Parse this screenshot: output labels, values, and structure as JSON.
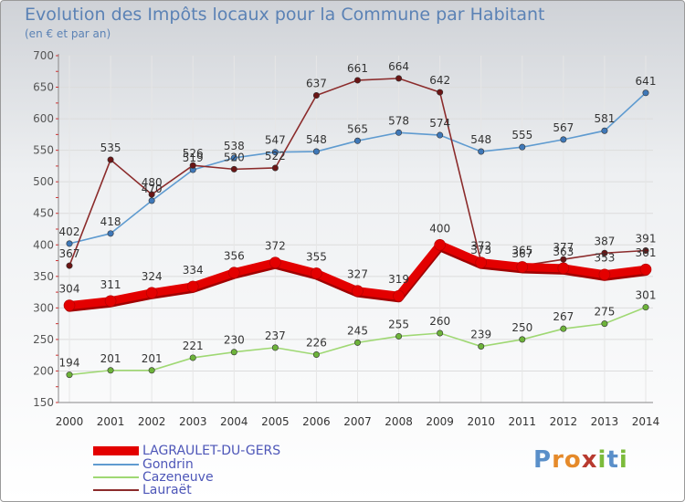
{
  "header": {
    "title": "Evolution des Impôts locaux pour la Commune par Habitant",
    "subtitle": "(en € et par an)"
  },
  "logo": {
    "text": "Proxiti",
    "letters": [
      "P",
      "r",
      "o",
      "x",
      "i",
      "t",
      "i"
    ],
    "colors": [
      "#5a8fc9",
      "#e58a2a",
      "#e58a2a",
      "#b83a2f",
      "#7cbb3b",
      "#5a8fc9",
      "#7cbb3b"
    ]
  },
  "chart_data": {
    "type": "line",
    "title": "Evolution des Impôts locaux pour la Commune par Habitant",
    "ylabel": "(en € et par an)",
    "xlabel": "",
    "categories": [
      "2000",
      "2001",
      "2002",
      "2003",
      "2004",
      "2005",
      "2006",
      "2007",
      "2008",
      "2009",
      "2010",
      "2011",
      "2012",
      "2013",
      "2014"
    ],
    "ylim": [
      150,
      700
    ],
    "yticks": [
      150,
      200,
      250,
      300,
      350,
      400,
      450,
      500,
      550,
      600,
      650,
      700
    ],
    "grid": true,
    "legend_position": "bottom-left",
    "series": [
      {
        "name": "LAGRAULET-DU-GERS",
        "color": "#e30000",
        "marker": "#d01010",
        "emphasis": true,
        "values": [
          304,
          311,
          324,
          334,
          356,
          372,
          355,
          327,
          319,
          400,
          372,
          365,
          363,
          353,
          361
        ],
        "labels": [
          "304",
          "311",
          "324",
          "334",
          "356",
          "372",
          "355",
          "327",
          "319",
          "400",
          "372",
          "365",
          "363",
          "353",
          "361"
        ]
      },
      {
        "name": "Gondrin",
        "color": "#5f9bd0",
        "marker": "#3f78b8",
        "values": [
          402,
          418,
          470,
          519,
          538,
          547,
          548,
          565,
          578,
          574,
          548,
          555,
          567,
          581,
          641
        ],
        "labels": [
          "402",
          "418",
          "470",
          "519",
          "538",
          "547",
          "548",
          "565",
          "578",
          "574",
          "548",
          "555",
          "567",
          "581",
          "641"
        ]
      },
      {
        "name": "Cazeneuve",
        "color": "#9fd873",
        "marker": "#6db33a",
        "values": [
          194,
          201,
          201,
          221,
          230,
          237,
          226,
          245,
          255,
          260,
          239,
          250,
          267,
          275,
          301
        ],
        "labels": [
          "194",
          "201",
          "201",
          "221",
          "230",
          "237",
          "226",
          "245",
          "255",
          "260",
          "239",
          "250",
          "267",
          "275",
          "301"
        ]
      },
      {
        "name": "Lauraët",
        "color": "#8b2b2b",
        "marker": "#6a1515",
        "values": [
          367,
          535,
          480,
          526,
          520,
          522,
          637,
          661,
          664,
          642,
          373,
          367,
          377,
          387,
          391
        ],
        "labels": [
          "367",
          "535",
          "480",
          "526",
          "520",
          "522",
          "637",
          "661",
          "664",
          "642",
          "373",
          "367",
          "377",
          "387",
          "391"
        ]
      }
    ]
  }
}
